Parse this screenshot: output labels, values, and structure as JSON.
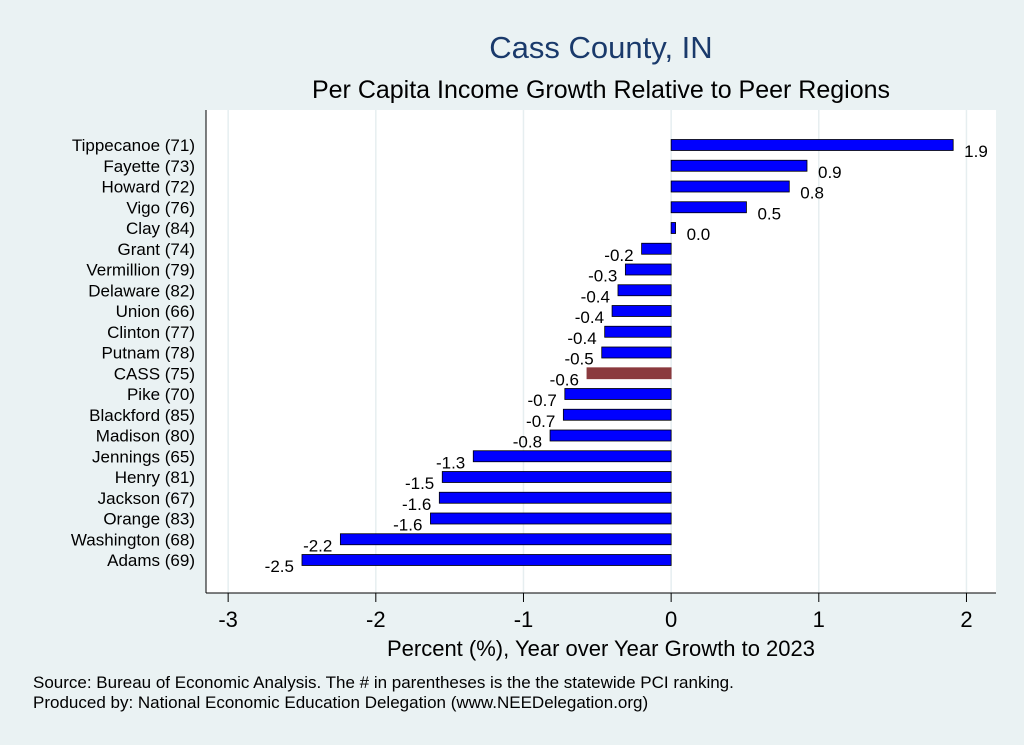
{
  "chart_data": {
    "type": "bar",
    "orientation": "horizontal",
    "title": "Cass County, IN",
    "subtitle": "Per Capita Income Growth Relative to Peer Regions",
    "xlabel": "Percent (%), Year over Year Growth to 2023",
    "xlim": [
      -3.15,
      2.2
    ],
    "xticks": [
      -3,
      -2,
      -1,
      0,
      1,
      2
    ],
    "grid": true,
    "categories": [
      "Tippecanoe (71)",
      "Fayette (73)",
      "Howard (72)",
      "Vigo (76)",
      "Clay (84)",
      "Grant (74)",
      "Vermillion (79)",
      "Delaware (82)",
      "Union (66)",
      "Clinton (77)",
      "Putnam (78)",
      "CASS (75)",
      "Pike (70)",
      "Blackford (85)",
      "Madison (80)",
      "Jennings (65)",
      "Henry (81)",
      "Jackson (67)",
      "Orange (83)",
      "Washington (68)",
      "Adams (69)"
    ],
    "values": [
      1.91,
      0.92,
      0.8,
      0.51,
      0.03,
      -0.2,
      -0.31,
      -0.36,
      -0.4,
      -0.45,
      -0.47,
      -0.57,
      -0.72,
      -0.73,
      -0.82,
      -1.34,
      -1.55,
      -1.57,
      -1.63,
      -2.24,
      -2.5
    ],
    "value_labels": [
      "1.9",
      "0.9",
      "0.8",
      "0.5",
      "0.0",
      "-0.2",
      "-0.3",
      "-0.4",
      "-0.4",
      "-0.4",
      "-0.5",
      "-0.6",
      "-0.7",
      "-0.7",
      "-0.8",
      "-1.3",
      "-1.5",
      "-1.6",
      "-1.6",
      "-2.2",
      "-2.5"
    ],
    "highlight_category": "CASS (75)",
    "colors": {
      "bar": "#0000ff",
      "bar_stroke": "#000000",
      "highlight": "#8b3a3e",
      "plot_bg": "#ffffff",
      "page_bg": "#eaf2f3",
      "grid": "#e6eef0",
      "title": "#1a3a6b"
    }
  },
  "footer": {
    "source": "Source: Bureau of Economic Analysis. The # in parentheses is the the statewide PCI ranking.",
    "producer": "Produced by: National Economic Education Delegation (www.NEEDelegation.org)"
  }
}
